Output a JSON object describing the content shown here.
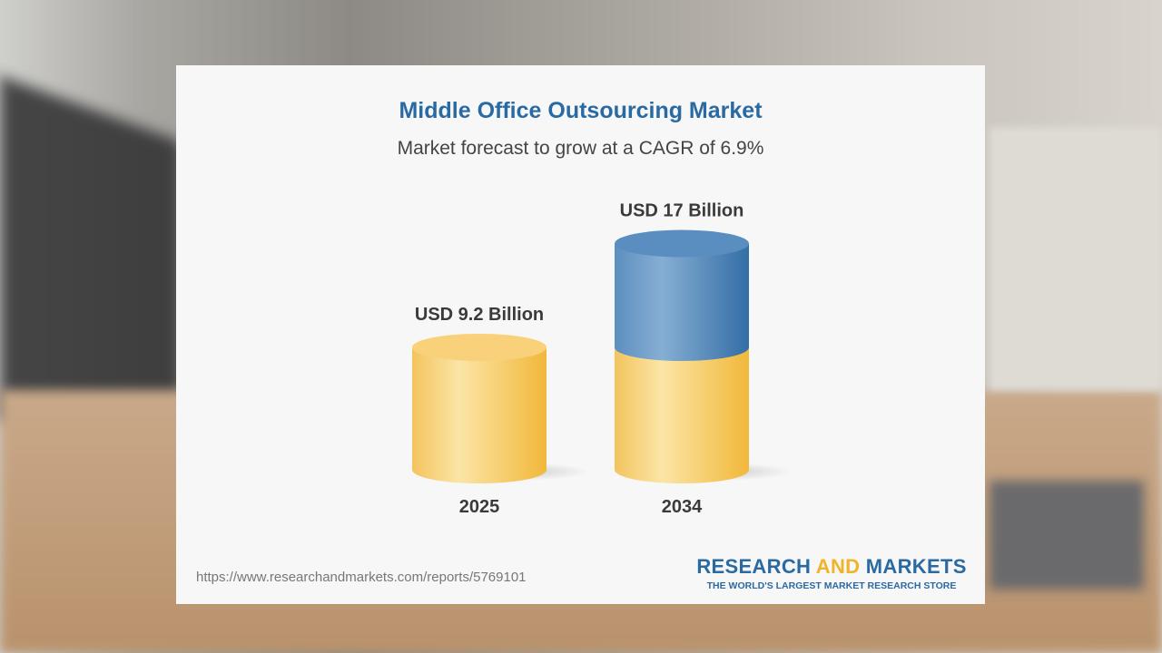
{
  "chart_data": {
    "type": "bar",
    "title": "Middle Office Outsourcing Market",
    "subtitle": "Market forecast to grow at a CAGR of 6.9%",
    "categories": [
      "2025",
      "2034"
    ],
    "values": [
      9.2,
      17
    ],
    "data_labels": [
      "USD 9.2 Billion",
      "USD 17 Billion"
    ],
    "unit": "USD Billion",
    "style": "3d-cylinder",
    "colors": {
      "base": "#f5c55a",
      "growth": "#4f86b8"
    },
    "grid": false
  },
  "footer": {
    "url": "https://www.researchandmarkets.com/reports/5769101",
    "logo_part1": "RESEARCH ",
    "logo_part2": "AND",
    "logo_part3": " MARKETS",
    "tagline": "THE WORLD'S LARGEST MARKET RESEARCH STORE"
  }
}
